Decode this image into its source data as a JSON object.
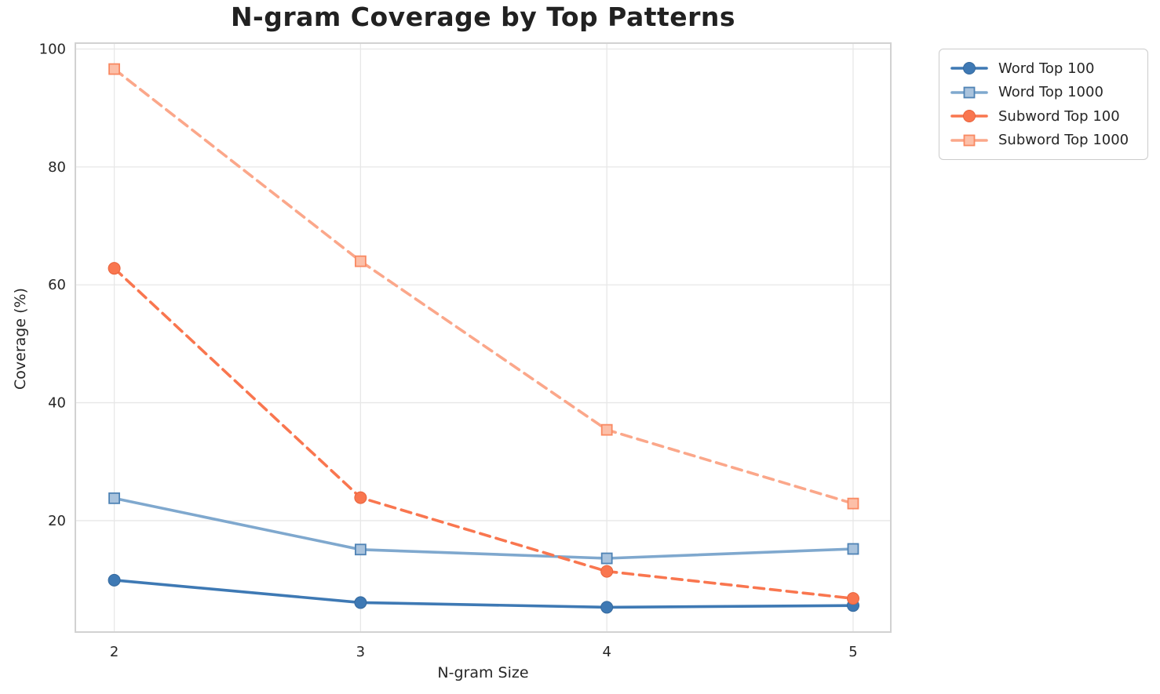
{
  "chart_data": {
    "type": "line",
    "title": "N-gram Coverage by Top Patterns",
    "xlabel": "N-gram Size",
    "ylabel": "Coverage (%)",
    "x": [
      2,
      3,
      4,
      5
    ],
    "series": [
      {
        "name": "Word Top 100",
        "values": [
          9.9,
          6.1,
          5.3,
          5.6
        ],
        "color": "#3E79B4",
        "marker": "circle",
        "marker_fill": "#3E79B4",
        "marker_edge": "#35699D",
        "dashed": false
      },
      {
        "name": "Word Top 1000",
        "values": [
          23.8,
          15.1,
          13.6,
          15.2
        ],
        "color": "#7FA8CE",
        "marker": "square",
        "marker_fill": "#A9C3DD",
        "marker_edge": "#4F83B5",
        "dashed": false
      },
      {
        "name": "Subword Top 100",
        "values": [
          62.8,
          23.9,
          11.4,
          6.8
        ],
        "color": "#F9764F",
        "marker": "circle",
        "marker_fill": "#F9764F",
        "marker_edge": "#E8633C",
        "dashed": true
      },
      {
        "name": "Subword Top 1000",
        "values": [
          96.6,
          64.0,
          35.4,
          22.9
        ],
        "color": "#FBA78A",
        "marker": "square",
        "marker_fill": "#FCBFA8",
        "marker_edge": "#F98962",
        "dashed": true
      }
    ],
    "axes": {
      "xlim": [
        1.842,
        5.153
      ],
      "ylim": [
        1.1,
        101.0
      ],
      "xticks": [
        "2",
        "3",
        "4",
        "5"
      ],
      "xtick_values": [
        2,
        3,
        4,
        5
      ],
      "yticks": [
        "20",
        "40",
        "60",
        "80",
        "100"
      ],
      "ytick_values": [
        20,
        40,
        60,
        80,
        100
      ],
      "grid": true
    },
    "legend": {
      "position": "outside-top-right"
    },
    "style": {
      "background": "#FFFFFF",
      "grid_color": "#E7E7E7",
      "spine_color": "#D2D2D2",
      "tick_color": "#262626",
      "title_color": "#212121"
    }
  }
}
